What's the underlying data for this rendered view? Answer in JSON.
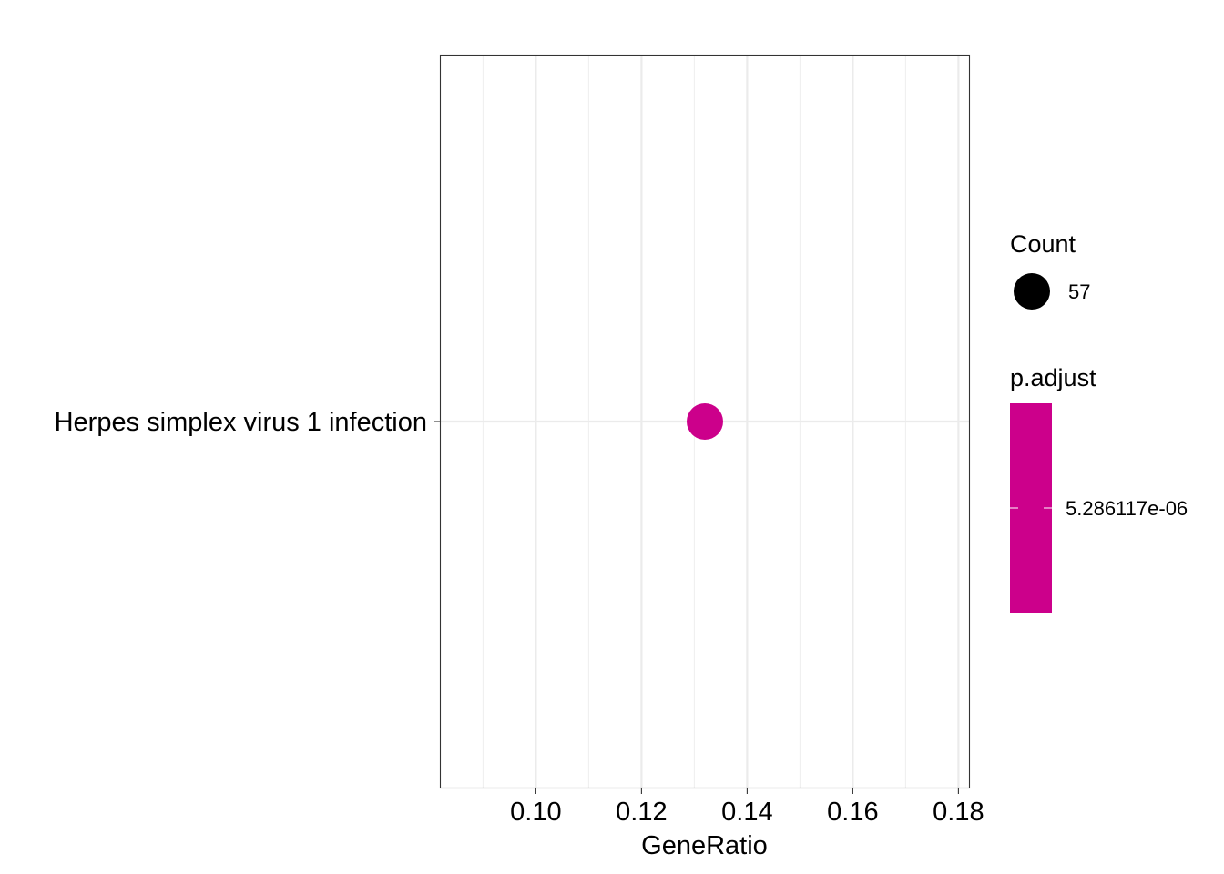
{
  "chart_data": {
    "type": "scatter",
    "title": "",
    "xlabel": "GeneRatio",
    "ylabel": "",
    "xlim": [
      0.082,
      0.182
    ],
    "x_ticks": [
      "0.10",
      "0.12",
      "0.14",
      "0.16",
      "0.18"
    ],
    "categories": [
      "Herpes simplex virus 1 infection"
    ],
    "points": [
      {
        "category": "Herpes simplex virus 1 infection",
        "x": 0.132,
        "count": 57,
        "p_adjust": 5.286117e-06,
        "color": "#CC008B"
      }
    ],
    "grid": true,
    "legend_position": "right",
    "legend": {
      "size": {
        "title": "Count",
        "entries": [
          "57"
        ]
      },
      "color": {
        "title": "p.adjust",
        "labels": [
          "5.286117e-06"
        ],
        "color": "#CC008B"
      }
    }
  }
}
